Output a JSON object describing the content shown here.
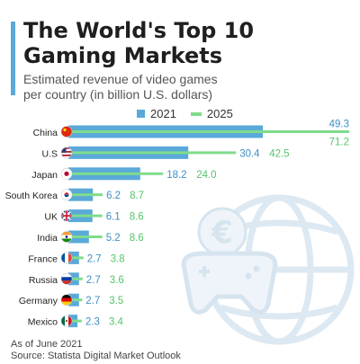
{
  "title_lines": [
    "The World's Top 10",
    "Gaming Markets"
  ],
  "subtitle_lines": [
    "Estimated revenue of video games",
    "per country (in billion U.S. dollars)"
  ],
  "legend": [
    {
      "label": "2021",
      "color": "#5aa9d9"
    },
    {
      "label": "2025",
      "color": "#7fdc8c"
    }
  ],
  "footer": {
    "note": "As of June 2021",
    "source": "Source: Statista Digital Market Outlook"
  },
  "colors": {
    "bar_2021": "#5aa9d9",
    "bar_2025": "#7fdc8c",
    "label_2021": "#3d8fc4",
    "label_2025": "#55c46a",
    "decor": "#e4eef5"
  },
  "chart_data": {
    "type": "bar",
    "orientation": "horizontal",
    "categories": [
      "China",
      "U.S",
      "Japan",
      "South Korea",
      "UK",
      "India",
      "France",
      "Russia",
      "Germany",
      "Mexico"
    ],
    "series": [
      {
        "name": "2021",
        "values": [
          49.3,
          30.4,
          18.2,
          6.2,
          6.1,
          5.2,
          2.7,
          2.7,
          2.7,
          2.3
        ]
      },
      {
        "name": "2025",
        "values": [
          71.2,
          42.5,
          24.0,
          8.7,
          8.6,
          8.6,
          3.8,
          3.6,
          3.5,
          3.4
        ]
      }
    ],
    "value_labels": [
      [
        "49.3",
        "71.2"
      ],
      [
        "30.4",
        "42.5"
      ],
      [
        "18.2",
        "24.0"
      ],
      [
        "6.2",
        "8.7"
      ],
      [
        "6.1",
        "8.6"
      ],
      [
        "5.2",
        "8.6"
      ],
      [
        "2.7",
        "3.8"
      ],
      [
        "2.7",
        "3.6"
      ],
      [
        "2.7",
        "3.5"
      ],
      [
        "2.3",
        "3.4"
      ]
    ],
    "flags": [
      "cn",
      "us",
      "jp",
      "kr",
      "uk",
      "in",
      "fr",
      "ru",
      "de",
      "mx"
    ],
    "decorative_icons": [
      "globe-icon",
      "euro-icon",
      "gamepad-icon"
    ]
  }
}
